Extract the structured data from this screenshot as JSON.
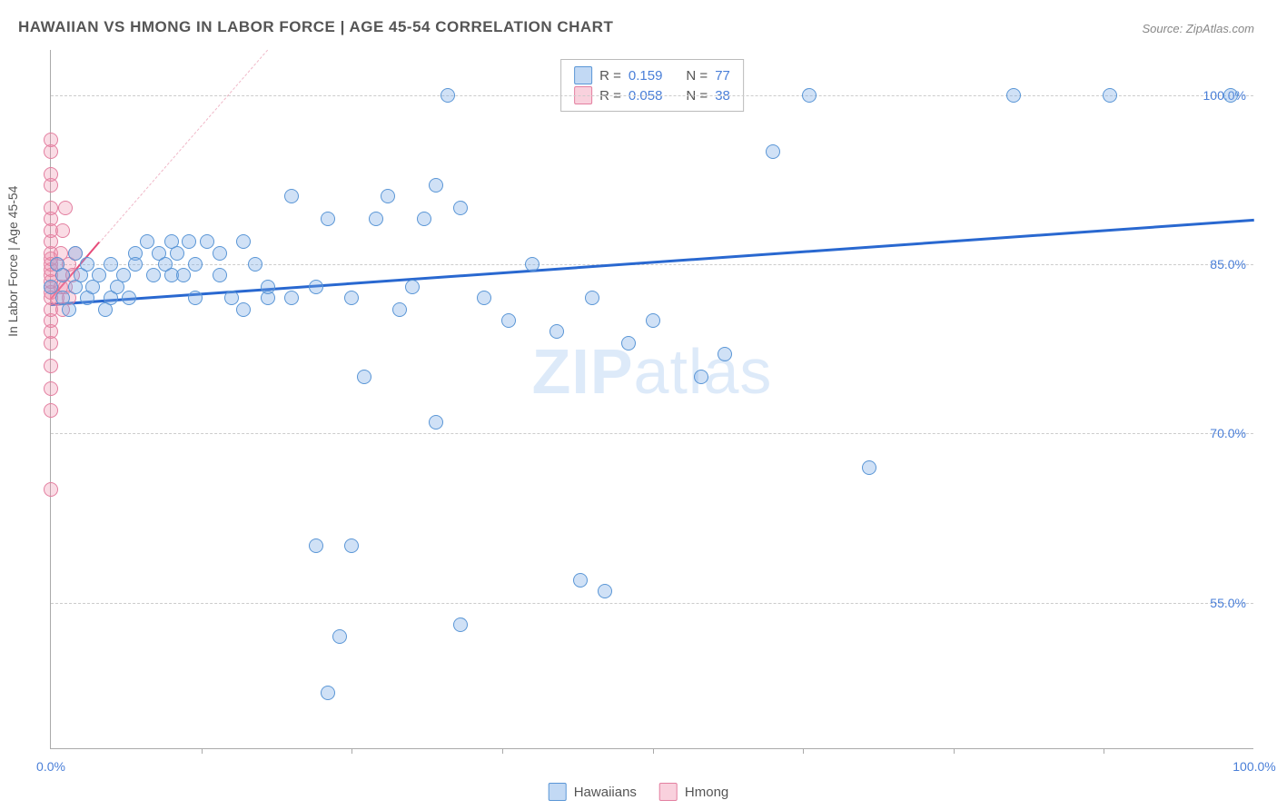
{
  "title": "HAWAIIAN VS HMONG IN LABOR FORCE | AGE 45-54 CORRELATION CHART",
  "source": "Source: ZipAtlas.com",
  "y_axis_label": "In Labor Force | Age 45-54",
  "watermark_bold": "ZIP",
  "watermark_light": "atlas",
  "chart": {
    "type": "scatter",
    "x_min": 0,
    "x_max": 100,
    "y_min": 42,
    "y_max": 104,
    "background_color": "#ffffff",
    "grid_color": "#cccccc",
    "axis_color": "#aaaaaa",
    "y_gridlines": [
      55.0,
      70.0,
      85.0,
      100.0
    ],
    "y_tick_labels": [
      "55.0%",
      "70.0%",
      "85.0%",
      "100.0%"
    ],
    "x_ticks_minor": [
      12.5,
      25,
      37.5,
      50,
      62.5,
      75,
      87.5
    ],
    "x_tick_labels": [
      {
        "pos": 0,
        "label": "0.0%"
      },
      {
        "pos": 100,
        "label": "100.0%"
      }
    ],
    "series": [
      {
        "name": "Hawaiians",
        "color_fill": "rgba(120,170,230,0.35)",
        "color_stroke": "#5a96d6",
        "marker_size": 16,
        "points": [
          [
            0,
            83
          ],
          [
            0.5,
            85
          ],
          [
            1,
            82
          ],
          [
            1,
            84
          ],
          [
            1.5,
            81
          ],
          [
            2,
            83
          ],
          [
            2,
            86
          ],
          [
            2.5,
            84
          ],
          [
            3,
            82
          ],
          [
            3,
            85
          ],
          [
            3.5,
            83
          ],
          [
            4,
            84
          ],
          [
            4.5,
            81
          ],
          [
            5,
            82
          ],
          [
            5,
            85
          ],
          [
            5.5,
            83
          ],
          [
            6,
            84
          ],
          [
            6.5,
            82
          ],
          [
            7,
            86
          ],
          [
            7,
            85
          ],
          [
            8,
            87
          ],
          [
            8.5,
            84
          ],
          [
            9,
            86
          ],
          [
            9.5,
            85
          ],
          [
            10,
            84
          ],
          [
            10,
            87
          ],
          [
            10.5,
            86
          ],
          [
            11,
            84
          ],
          [
            11.5,
            87
          ],
          [
            12,
            85
          ],
          [
            12,
            82
          ],
          [
            13,
            87
          ],
          [
            14,
            84
          ],
          [
            14,
            86
          ],
          [
            15,
            82
          ],
          [
            16,
            87
          ],
          [
            16,
            81
          ],
          [
            17,
            85
          ],
          [
            18,
            82
          ],
          [
            18,
            83
          ],
          [
            20,
            82
          ],
          [
            20,
            91
          ],
          [
            22,
            83
          ],
          [
            22,
            60
          ],
          [
            23,
            89
          ],
          [
            23,
            47
          ],
          [
            24,
            52
          ],
          [
            25,
            82
          ],
          [
            25,
            60
          ],
          [
            26,
            75
          ],
          [
            27,
            89
          ],
          [
            28,
            91
          ],
          [
            29,
            81
          ],
          [
            30,
            83
          ],
          [
            31,
            89
          ],
          [
            32,
            71
          ],
          [
            32,
            92
          ],
          [
            33,
            100
          ],
          [
            34,
            90
          ],
          [
            34,
            53
          ],
          [
            36,
            82
          ],
          [
            38,
            80
          ],
          [
            40,
            85
          ],
          [
            42,
            79
          ],
          [
            44,
            57
          ],
          [
            45,
            82
          ],
          [
            46,
            56
          ],
          [
            48,
            78
          ],
          [
            50,
            80
          ],
          [
            54,
            75
          ],
          [
            56,
            77
          ],
          [
            60,
            95
          ],
          [
            63,
            100
          ],
          [
            68,
            67
          ],
          [
            80,
            100
          ],
          [
            88,
            100
          ],
          [
            98,
            100
          ]
        ],
        "trend": {
          "x1": 0,
          "y1": 81.5,
          "x2": 100,
          "y2": 89,
          "color": "#2968d0",
          "width": 2.5
        }
      },
      {
        "name": "Hmong",
        "color_fill": "rgba(240,140,170,0.30)",
        "color_stroke": "#e37fa0",
        "marker_size": 16,
        "points": [
          [
            0,
            65
          ],
          [
            0,
            72
          ],
          [
            0,
            74
          ],
          [
            0,
            76
          ],
          [
            0,
            78
          ],
          [
            0,
            79
          ],
          [
            0,
            80
          ],
          [
            0,
            81
          ],
          [
            0,
            82
          ],
          [
            0,
            82.5
          ],
          [
            0,
            83
          ],
          [
            0,
            83.5
          ],
          [
            0,
            84
          ],
          [
            0,
            84.5
          ],
          [
            0,
            85
          ],
          [
            0,
            85.5
          ],
          [
            0,
            86
          ],
          [
            0,
            87
          ],
          [
            0,
            88
          ],
          [
            0,
            89
          ],
          [
            0,
            90
          ],
          [
            0,
            92
          ],
          [
            0,
            93
          ],
          [
            0,
            95
          ],
          [
            0,
            96
          ],
          [
            0.5,
            82
          ],
          [
            0.5,
            85
          ],
          [
            0.8,
            83
          ],
          [
            0.8,
            86
          ],
          [
            1,
            81
          ],
          [
            1,
            84
          ],
          [
            1,
            88
          ],
          [
            1.2,
            83
          ],
          [
            1.2,
            90
          ],
          [
            1.5,
            82
          ],
          [
            1.5,
            85
          ],
          [
            1.8,
            84
          ],
          [
            2,
            86
          ]
        ],
        "trend_dash": {
          "x1": 0,
          "y1": 82,
          "x2": 18,
          "y2": 104,
          "color": "#f0b8c8"
        },
        "trend_solid": {
          "x1": 0,
          "y1": 82,
          "x2": 4,
          "y2": 87,
          "color": "#e64c7a"
        }
      }
    ]
  },
  "legend": {
    "rows": [
      {
        "swatch": "blue",
        "r_label": "R = ",
        "r_value": "0.159",
        "n_label": "N = ",
        "n_value": "77"
      },
      {
        "swatch": "pink",
        "r_label": "R = ",
        "r_value": "0.058",
        "n_label": "N = ",
        "n_value": "38"
      }
    ]
  },
  "bottom_legend": {
    "items": [
      {
        "swatch": "blue",
        "label": "Hawaiians"
      },
      {
        "swatch": "pink",
        "label": "Hmong"
      }
    ]
  }
}
